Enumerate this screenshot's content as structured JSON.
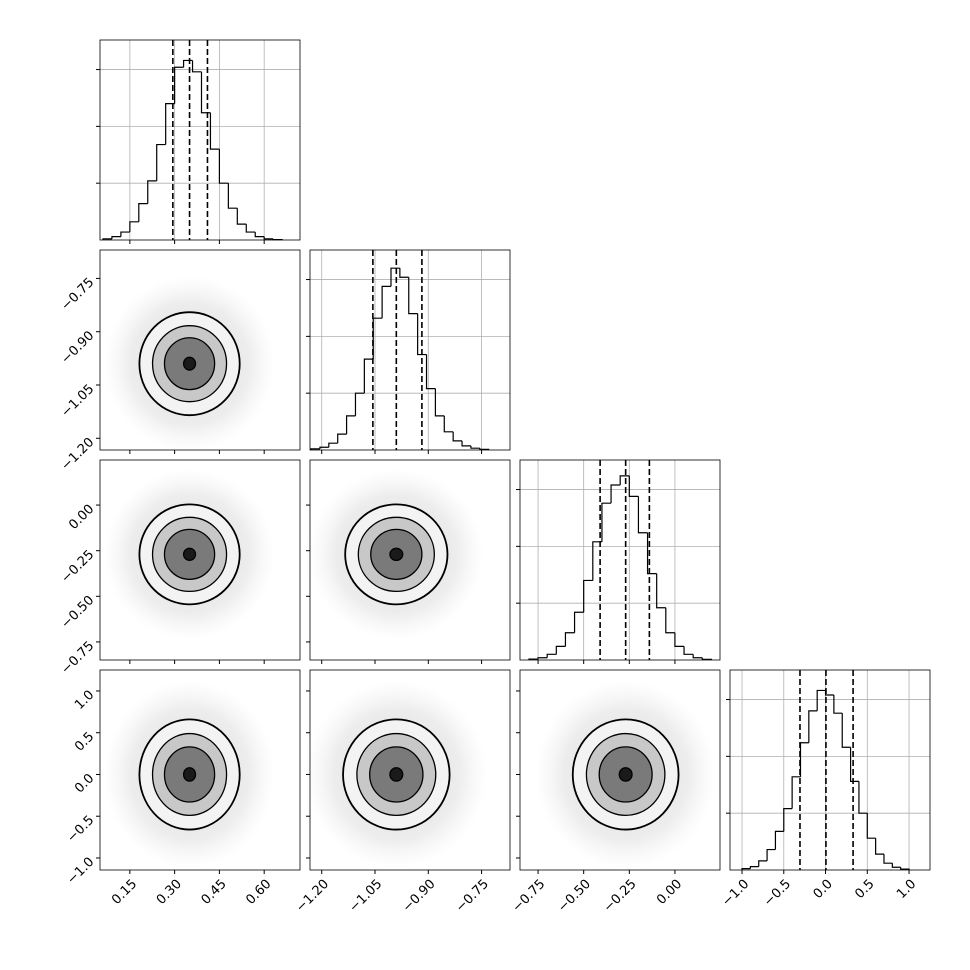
{
  "chart_data": {
    "type": "corner",
    "params": [
      {
        "lim": [
          0.05,
          0.72
        ],
        "ticks": [
          {
            "value": 0.15,
            "label": "0.15"
          },
          {
            "value": 0.3,
            "label": "0.30"
          },
          {
            "value": 0.45,
            "label": "0.45"
          },
          {
            "value": 0.6,
            "label": "0.60"
          }
        ],
        "bins": [
          0.06,
          0.09,
          0.12,
          0.15,
          0.18,
          0.21,
          0.24,
          0.27,
          0.3,
          0.33,
          0.36,
          0.39,
          0.42,
          0.45,
          0.48,
          0.51,
          0.54,
          0.57,
          0.6,
          0.63,
          0.66
        ],
        "counts": [
          5,
          15,
          35,
          80,
          160,
          260,
          420,
          600,
          760,
          790,
          740,
          560,
          400,
          250,
          140,
          70,
          35,
          15,
          5,
          2
        ],
        "quantiles": [
          0.294,
          0.35,
          0.41
        ]
      },
      {
        "lim": [
          -1.233,
          -0.67
        ],
        "ticks": [
          {
            "value": -1.2,
            "label": "−1.20"
          },
          {
            "value": -1.05,
            "label": "−1.05"
          },
          {
            "value": -0.9,
            "label": "−0.90"
          },
          {
            "value": -0.75,
            "label": "−0.75"
          }
        ],
        "bins": [
          -1.23,
          -1.205,
          -1.18,
          -1.155,
          -1.13,
          -1.105,
          -1.08,
          -1.055,
          -1.03,
          -1.005,
          -0.98,
          -0.955,
          -0.93,
          -0.905,
          -0.88,
          -0.855,
          -0.83,
          -0.805,
          -0.78,
          -0.755,
          -0.73
        ],
        "counts": [
          5,
          12,
          30,
          70,
          150,
          250,
          400,
          580,
          720,
          800,
          760,
          600,
          420,
          270,
          150,
          80,
          40,
          18,
          8,
          3
        ],
        "quantiles": [
          -1.056,
          -0.99,
          -0.918
        ]
      },
      {
        "lim": [
          -0.849,
          0.247
        ],
        "ticks": [
          {
            "value": -0.75,
            "label": "−0.75"
          },
          {
            "value": -0.5,
            "label": "−0.50"
          },
          {
            "value": -0.25,
            "label": "−0.25"
          },
          {
            "value": 0,
            "label": "0.00"
          }
        ],
        "bins": [
          -0.8,
          -0.75,
          -0.7,
          -0.65,
          -0.6,
          -0.55,
          -0.5,
          -0.45,
          -0.4,
          -0.35,
          -0.3,
          -0.25,
          -0.2,
          -0.15,
          -0.1,
          -0.05,
          0.0,
          0.05,
          0.1,
          0.15,
          0.2
        ],
        "counts": [
          4,
          10,
          25,
          60,
          120,
          210,
          350,
          520,
          690,
          770,
          810,
          720,
          560,
          380,
          230,
          120,
          60,
          25,
          10,
          3
        ],
        "quantiles": [
          -0.41,
          -0.27,
          -0.14
        ]
      },
      {
        "lim": [
          -1.144,
          1.251
        ],
        "ticks": [
          {
            "value": -1,
            "label": "−1.0"
          },
          {
            "value": -0.5,
            "label": "−0.5"
          },
          {
            "value": 0,
            "label": "0.0"
          },
          {
            "value": 0.5,
            "label": "0.5"
          },
          {
            "value": 1,
            "label": "1.0"
          }
        ],
        "bins": [
          -1.0,
          -0.9,
          -0.8,
          -0.7,
          -0.6,
          -0.5,
          -0.4,
          -0.3,
          -0.2,
          -0.1,
          0.0,
          0.1,
          0.2,
          0.3,
          0.4,
          0.5,
          0.6,
          0.7,
          0.8,
          0.9,
          1.0
        ],
        "counts": [
          6,
          15,
          40,
          90,
          170,
          270,
          410,
          560,
          700,
          790,
          770,
          690,
          540,
          390,
          250,
          140,
          70,
          30,
          12,
          4
        ],
        "quantiles": [
          -0.306,
          0.005,
          0.33
        ]
      }
    ],
    "hist_ylim": [
      0,
      880
    ],
    "hist_yticks": [
      250,
      500,
      750
    ],
    "level_fills": [
      "#f3f3f3",
      "#c8c8c8",
      "#7a7a7a",
      "#1a1a1a"
    ],
    "pairs": [
      {
        "x": 0,
        "y": 1,
        "center": [
          0.35,
          -0.99
        ],
        "rx": [
          0.168,
          0.124,
          0.084,
          0.02
        ],
        "ry": [
          0.145,
          0.107,
          0.073,
          0.018
        ]
      },
      {
        "x": 0,
        "y": 2,
        "center": [
          0.35,
          -0.27
        ],
        "rx": [
          0.168,
          0.124,
          0.084,
          0.02
        ],
        "ry": [
          0.274,
          0.203,
          0.137,
          0.033
        ]
      },
      {
        "x": 1,
        "y": 2,
        "center": [
          -0.99,
          -0.27
        ],
        "rx": [
          0.144,
          0.107,
          0.072,
          0.018
        ],
        "ry": [
          0.274,
          0.203,
          0.137,
          0.033
        ]
      },
      {
        "x": 0,
        "y": 3,
        "center": [
          0.35,
          0.0
        ],
        "rx": [
          0.168,
          0.124,
          0.084,
          0.02
        ],
        "ry": [
          0.66,
          0.49,
          0.33,
          0.08
        ]
      },
      {
        "x": 1,
        "y": 3,
        "center": [
          -0.99,
          0.0
        ],
        "rx": [
          0.15,
          0.111,
          0.075,
          0.018
        ],
        "ry": [
          0.66,
          0.49,
          0.33,
          0.08
        ]
      },
      {
        "x": 2,
        "y": 3,
        "center": [
          -0.27,
          0.0
        ],
        "rx": [
          0.29,
          0.215,
          0.145,
          0.035
        ],
        "ry": [
          0.66,
          0.49,
          0.33,
          0.08
        ]
      }
    ]
  }
}
